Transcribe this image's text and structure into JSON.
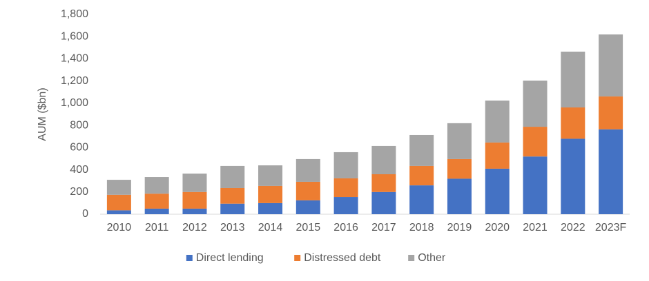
{
  "chart_data": {
    "type": "bar",
    "stacked": true,
    "y_label": "AUM ($bn)",
    "categories": [
      "2010",
      "2011",
      "2012",
      "2013",
      "2014",
      "2015",
      "2016",
      "2017",
      "2018",
      "2019",
      "2020",
      "2021",
      "2022",
      "2023F"
    ],
    "series": [
      {
        "name": "Direct lending",
        "color": "#4472c4",
        "values": [
          35,
          50,
          50,
          95,
          100,
          125,
          155,
          200,
          260,
          320,
          410,
          520,
          680,
          765
        ]
      },
      {
        "name": "Distressed debt",
        "color": "#ed7d31",
        "values": [
          140,
          135,
          150,
          141,
          155,
          167,
          168,
          160,
          175,
          177,
          236,
          268,
          282,
          296
        ]
      },
      {
        "name": "Other",
        "color": "#a5a5a5",
        "values": [
          135,
          150,
          166,
          199,
          185,
          205,
          236,
          255,
          279,
          323,
          378,
          416,
          503,
          559
        ]
      }
    ],
    "ylim": [
      0,
      1800
    ],
    "yticks": [
      0,
      200,
      400,
      600,
      800,
      {
        "value": 1000,
        "label": "1,000"
      },
      {
        "value": 1200,
        "label": "1,200"
      },
      {
        "value": 1400,
        "label": "1,400"
      },
      {
        "value": 1600,
        "label": "1,600"
      },
      {
        "value": 1800,
        "label": "1,800"
      }
    ],
    "grid": false,
    "legend": "bottom"
  }
}
